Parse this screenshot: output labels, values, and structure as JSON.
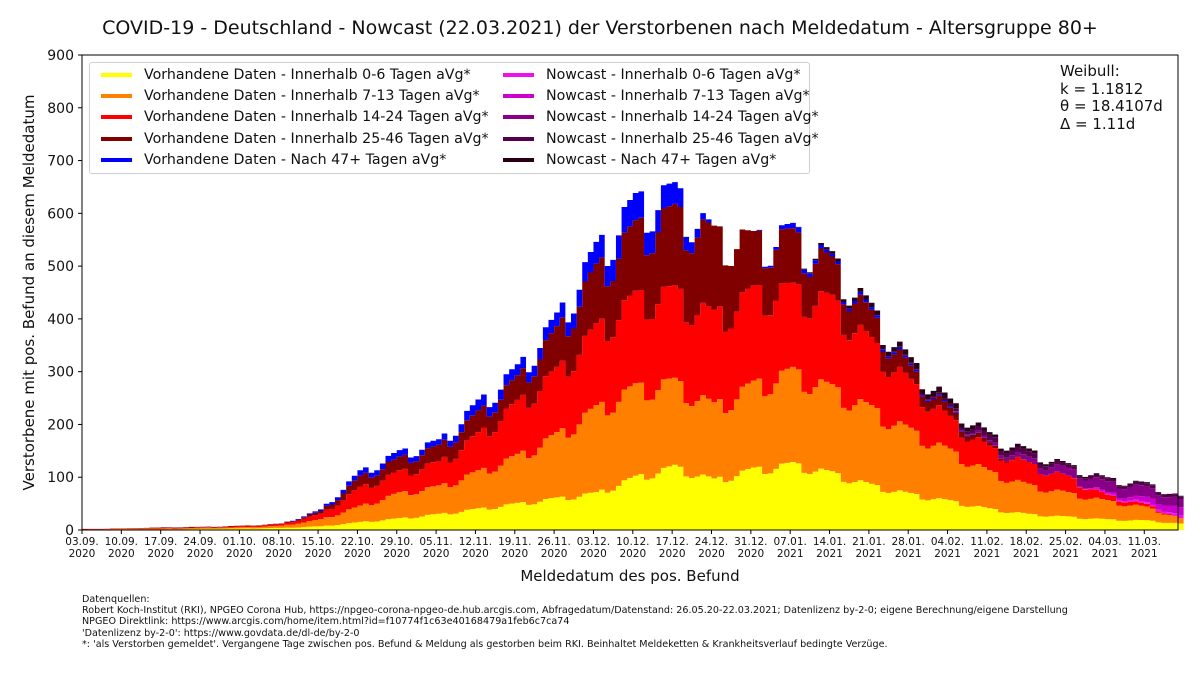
{
  "chart_data": {
    "type": "area",
    "style": "stacked-step",
    "title": "COVID-19 - Deutschland - Nowcast (22.03.2021) der Verstorbenen nach Meldedatum - Altersgruppe 80+",
    "xlabel": "Meldedatum des pos. Befund",
    "ylabel": "Verstorbene mit pos. Befund an diesem Meldedatum",
    "ylim": [
      0,
      900
    ],
    "yticks": [
      0,
      100,
      200,
      300,
      400,
      500,
      600,
      700,
      800,
      900
    ],
    "xlim": [
      "2020-09-03",
      "2021-03-17"
    ],
    "xticks": [
      {
        "date": "2020-09-03",
        "label": "03.09.",
        "year": "2020"
      },
      {
        "date": "2020-09-10",
        "label": "10.09.",
        "year": "2020"
      },
      {
        "date": "2020-09-17",
        "label": "17.09.",
        "year": "2020"
      },
      {
        "date": "2020-09-24",
        "label": "24.09.",
        "year": "2020"
      },
      {
        "date": "2020-10-01",
        "label": "01.10.",
        "year": "2020"
      },
      {
        "date": "2020-10-08",
        "label": "08.10.",
        "year": "2020"
      },
      {
        "date": "2020-10-15",
        "label": "15.10.",
        "year": "2020"
      },
      {
        "date": "2020-10-22",
        "label": "22.10.",
        "year": "2020"
      },
      {
        "date": "2020-10-29",
        "label": "29.10.",
        "year": "2020"
      },
      {
        "date": "2020-11-05",
        "label": "05.11.",
        "year": "2020"
      },
      {
        "date": "2020-11-12",
        "label": "12.11.",
        "year": "2020"
      },
      {
        "date": "2020-11-19",
        "label": "19.11.",
        "year": "2020"
      },
      {
        "date": "2020-11-26",
        "label": "26.11.",
        "year": "2020"
      },
      {
        "date": "2020-12-03",
        "label": "03.12.",
        "year": "2020"
      },
      {
        "date": "2020-12-10",
        "label": "10.12.",
        "year": "2020"
      },
      {
        "date": "2020-12-17",
        "label": "17.12.",
        "year": "2020"
      },
      {
        "date": "2020-12-24",
        "label": "24.12.",
        "year": "2020"
      },
      {
        "date": "2020-12-31",
        "label": "31.12.",
        "year": "2020"
      },
      {
        "date": "2021-01-07",
        "label": "07.01.",
        "year": "2021"
      },
      {
        "date": "2021-01-14",
        "label": "14.01.",
        "year": "2021"
      },
      {
        "date": "2021-01-21",
        "label": "21.01.",
        "year": "2021"
      },
      {
        "date": "2021-01-28",
        "label": "28.01.",
        "year": "2021"
      },
      {
        "date": "2021-02-04",
        "label": "04.02.",
        "year": "2021"
      },
      {
        "date": "2021-02-11",
        "label": "11.02.",
        "year": "2021"
      },
      {
        "date": "2021-02-18",
        "label": "18.02.",
        "year": "2021"
      },
      {
        "date": "2021-02-25",
        "label": "25.02.",
        "year": "2021"
      },
      {
        "date": "2021-03-04",
        "label": "04.03.",
        "year": "2021"
      },
      {
        "date": "2021-03-11",
        "label": "11.03.",
        "year": "2021"
      }
    ],
    "x": [
      "2020-09-03",
      "2020-09-10",
      "2020-09-17",
      "2020-09-24",
      "2020-10-01",
      "2020-10-08",
      "2020-10-15",
      "2020-10-22",
      "2020-10-29",
      "2020-11-05",
      "2020-11-12",
      "2020-11-19",
      "2020-11-26",
      "2020-12-03",
      "2020-12-10",
      "2020-12-17",
      "2020-12-24",
      "2020-12-31",
      "2021-01-07",
      "2021-01-14",
      "2021-01-21",
      "2021-01-28",
      "2021-02-04",
      "2021-02-11",
      "2021-02-18",
      "2021-02-25",
      "2021-03-04",
      "2021-03-11",
      "2021-03-17"
    ],
    "series": [
      {
        "name": "Vorhandene Daten - Innerhalb 0-6 Tagen aVg*",
        "color": "#ffff00",
        "values": [
          0,
          1,
          1,
          2,
          3,
          4,
          7,
          15,
          22,
          30,
          40,
          50,
          60,
          70,
          100,
          120,
          95,
          115,
          125,
          108,
          85,
          68,
          55,
          40,
          30,
          25,
          20,
          18,
          12
        ]
      },
      {
        "name": "Vorhandene Daten - Innerhalb 7-13 Tagen aVg*",
        "color": "#ff8000",
        "values": [
          1,
          1,
          2,
          2,
          2,
          4,
          13,
          30,
          48,
          52,
          70,
          90,
          120,
          160,
          170,
          160,
          140,
          160,
          175,
          160,
          145,
          120,
          95,
          70,
          55,
          45,
          35,
          25,
          10
        ]
      },
      {
        "name": "Vorhandene Daten - Innerhalb 14-24 Tagen aVg*",
        "color": "#ff0000",
        "values": [
          1,
          1,
          1,
          1,
          2,
          3,
          10,
          35,
          40,
          45,
          70,
          100,
          120,
          150,
          170,
          170,
          170,
          175,
          155,
          165,
          125,
          90,
          60,
          45,
          40,
          30,
          10,
          5,
          0
        ]
      },
      {
        "name": "Vorhandene Daten - Innerhalb 25-46 Tagen aVg*",
        "color": "#800000",
        "values": [
          0,
          0,
          1,
          1,
          1,
          1,
          5,
          20,
          25,
          30,
          40,
          45,
          75,
          110,
          130,
          150,
          155,
          100,
          100,
          70,
          50,
          25,
          15,
          5,
          0,
          0,
          0,
          0,
          0
        ]
      },
      {
        "name": "Vorhandene Daten - Nach 47+ Tagen aVg*",
        "color": "#0000ff",
        "values": [
          0,
          0,
          0,
          0,
          0,
          0,
          3,
          10,
          12,
          10,
          20,
          20,
          25,
          40,
          50,
          40,
          0,
          0,
          10,
          5,
          5,
          3,
          2,
          0,
          0,
          0,
          0,
          0,
          0
        ]
      },
      {
        "name": "Nowcast - Innerhalb 0-6 Tagen aVg*",
        "color": "#ee11ee",
        "values": [
          0,
          0,
          0,
          0,
          0,
          0,
          0,
          0,
          0,
          0,
          0,
          0,
          0,
          0,
          0,
          0,
          0,
          0,
          0,
          0,
          0,
          0,
          0,
          0,
          0,
          0,
          2,
          3,
          5
        ]
      },
      {
        "name": "Nowcast - Innerhalb 7-13 Tagen aVg*",
        "color": "#cc00cc",
        "values": [
          0,
          0,
          0,
          0,
          0,
          0,
          0,
          0,
          0,
          0,
          0,
          0,
          0,
          0,
          0,
          0,
          0,
          0,
          0,
          0,
          0,
          0,
          0,
          0,
          0,
          0,
          3,
          10,
          15
        ]
      },
      {
        "name": "Nowcast - Innerhalb 14-24 Tagen aVg*",
        "color": "#880088",
        "values": [
          0,
          0,
          0,
          0,
          0,
          0,
          0,
          0,
          0,
          0,
          0,
          0,
          0,
          0,
          0,
          0,
          0,
          0,
          0,
          0,
          0,
          0,
          0,
          5,
          10,
          15,
          20,
          20,
          15
        ]
      },
      {
        "name": "Nowcast - Innerhalb 25-46 Tagen aVg*",
        "color": "#55004d",
        "values": [
          0,
          0,
          0,
          0,
          0,
          0,
          0,
          0,
          0,
          0,
          0,
          0,
          0,
          0,
          0,
          0,
          0,
          0,
          0,
          0,
          0,
          2,
          5,
          10,
          10,
          5,
          5,
          5,
          5
        ]
      },
      {
        "name": "Nowcast - Nach 47+ Tagen aVg*",
        "color": "#2a0018",
        "values": [
          0,
          0,
          0,
          0,
          0,
          0,
          0,
          0,
          0,
          0,
          0,
          0,
          0,
          0,
          0,
          0,
          0,
          0,
          0,
          5,
          8,
          10,
          10,
          5,
          5,
          3,
          2,
          2,
          1
        ]
      }
    ],
    "legend": "top-left",
    "grid": false
  },
  "weibull": {
    "heading": "Weibull:",
    "k": "k = 1.1812",
    "theta": "θ = 18.4107d",
    "delta": "Δ = 1.11d"
  },
  "sources": {
    "heading": "Datenquellen:",
    "line1": "Robert Koch-Institut (RKI), NPGEO Corona Hub, https://npgeo-corona-npgeo-de.hub.arcgis.com, Abfragedatum/Datenstand: 26.05.20-22.03.2021; Datenlizenz by-2-0; eigene Berechnung/eigene Darstellung",
    "line2": "NPGEO Direktlink: https://www.arcgis.com/home/item.html?id=f10774f1c63e40168479a1feb6c7ca74",
    "line3": "'Datenlizenz by-2-0': https://www.govdata.de/dl-de/by-2-0",
    "line4": "*: 'als Verstorben gemeldet'. Vergangene Tage zwischen pos. Befund & Meldung als gestorben beim RKI. Beinhaltet Meldeketten & Krankheitsverlauf bedingte Verzüge."
  }
}
